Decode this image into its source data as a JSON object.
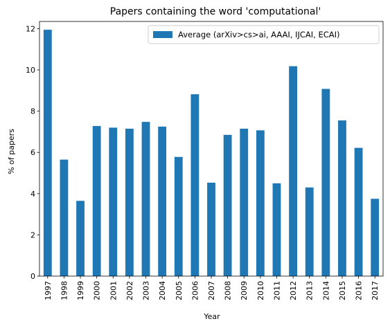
{
  "chart_data": {
    "type": "bar",
    "title": "Papers containing the word 'computational'",
    "xlabel": "Year",
    "ylabel": "% of papers",
    "categories": [
      "1997",
      "1998",
      "1999",
      "2000",
      "2001",
      "2002",
      "2003",
      "2004",
      "2005",
      "2006",
      "2007",
      "2008",
      "2009",
      "2010",
      "2011",
      "2012",
      "2013",
      "2014",
      "2015",
      "2016",
      "2017"
    ],
    "series": [
      {
        "name": "Average (arXiv>cs>ai, AAAI, IJCAI, ECAI)",
        "values": [
          11.95,
          5.65,
          3.65,
          7.28,
          7.2,
          7.15,
          7.48,
          7.25,
          5.78,
          8.82,
          4.53,
          6.85,
          7.15,
          7.07,
          4.5,
          10.18,
          4.3,
          9.08,
          7.55,
          6.22,
          3.75
        ]
      }
    ],
    "ylim": [
      0,
      12.35
    ],
    "yticks": [
      0,
      2,
      4,
      6,
      8,
      10,
      12
    ],
    "grid": false,
    "legend_position": "top-right",
    "colors": {
      "bar": "#1f77b4",
      "axis": "#000000",
      "legend_border": "#cccccc"
    }
  }
}
